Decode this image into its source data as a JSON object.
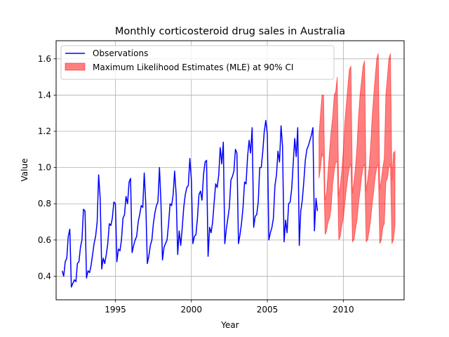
{
  "chart_data": {
    "type": "line",
    "title": "Monthly corticosteroid drug sales in Australia",
    "xlabel": "Year",
    "ylabel": "Value",
    "xlim": [
      1991.1,
      2014.0
    ],
    "ylim": [
      0.27,
      1.7
    ],
    "grid": true,
    "legend_position": "top-left",
    "x_ticks": [
      1995,
      2000,
      2005,
      2010
    ],
    "y_ticks": [
      0.4,
      0.6,
      0.8,
      1.0,
      1.2,
      1.4,
      1.6
    ],
    "x_tick_labels": [
      "1995",
      "2000",
      "2005",
      "2010"
    ],
    "y_tick_labels": [
      "0.4",
      "0.6",
      "0.8",
      "1.0",
      "1.2",
      "1.4",
      "1.6"
    ],
    "colors": {
      "observations": "#0000ff",
      "mle_band": "#ff0000",
      "grid": "#b0b0b0"
    },
    "series": [
      {
        "name": "Observations",
        "kind": "line",
        "points": [
          [
            1991.5,
            0.43
          ],
          [
            1991.6,
            0.4
          ],
          [
            1991.7,
            0.48
          ],
          [
            1991.8,
            0.5
          ],
          [
            1991.9,
            0.62
          ],
          [
            1992.0,
            0.66
          ],
          [
            1992.1,
            0.34
          ],
          [
            1992.2,
            0.36
          ],
          [
            1992.3,
            0.38
          ],
          [
            1992.4,
            0.37
          ],
          [
            1992.5,
            0.47
          ],
          [
            1992.6,
            0.48
          ],
          [
            1992.7,
            0.56
          ],
          [
            1992.8,
            0.6
          ],
          [
            1992.9,
            0.77
          ],
          [
            1993.0,
            0.76
          ],
          [
            1993.1,
            0.39
          ],
          [
            1993.2,
            0.43
          ],
          [
            1993.3,
            0.42
          ],
          [
            1993.4,
            0.46
          ],
          [
            1993.5,
            0.52
          ],
          [
            1993.6,
            0.58
          ],
          [
            1993.7,
            0.62
          ],
          [
            1993.8,
            0.7
          ],
          [
            1993.9,
            0.96
          ],
          [
            1994.0,
            0.83
          ],
          [
            1994.1,
            0.44
          ],
          [
            1994.2,
            0.5
          ],
          [
            1994.3,
            0.47
          ],
          [
            1994.4,
            0.52
          ],
          [
            1994.5,
            0.58
          ],
          [
            1994.6,
            0.69
          ],
          [
            1994.7,
            0.68
          ],
          [
            1994.8,
            0.72
          ],
          [
            1994.9,
            0.81
          ],
          [
            1995.0,
            0.8
          ],
          [
            1995.1,
            0.48
          ],
          [
            1995.2,
            0.55
          ],
          [
            1995.3,
            0.54
          ],
          [
            1995.4,
            0.6
          ],
          [
            1995.5,
            0.72
          ],
          [
            1995.6,
            0.74
          ],
          [
            1995.7,
            0.84
          ],
          [
            1995.8,
            0.8
          ],
          [
            1995.9,
            0.92
          ],
          [
            1996.0,
            0.94
          ],
          [
            1996.1,
            0.53
          ],
          [
            1996.2,
            0.57
          ],
          [
            1996.3,
            0.6
          ],
          [
            1996.4,
            0.62
          ],
          [
            1996.5,
            0.7
          ],
          [
            1996.6,
            0.74
          ],
          [
            1996.7,
            0.79
          ],
          [
            1996.8,
            0.78
          ],
          [
            1996.9,
            0.97
          ],
          [
            1997.0,
            0.8
          ],
          [
            1997.1,
            0.47
          ],
          [
            1997.2,
            0.51
          ],
          [
            1997.3,
            0.57
          ],
          [
            1997.4,
            0.6
          ],
          [
            1997.5,
            0.69
          ],
          [
            1997.6,
            0.75
          ],
          [
            1997.7,
            0.79
          ],
          [
            1997.8,
            0.81
          ],
          [
            1997.9,
            1.0
          ],
          [
            1998.0,
            0.81
          ],
          [
            1998.1,
            0.49
          ],
          [
            1998.2,
            0.56
          ],
          [
            1998.3,
            0.58
          ],
          [
            1998.4,
            0.6
          ],
          [
            1998.5,
            0.69
          ],
          [
            1998.6,
            0.8
          ],
          [
            1998.7,
            0.79
          ],
          [
            1998.8,
            0.85
          ],
          [
            1998.9,
            0.98
          ],
          [
            1999.0,
            0.85
          ],
          [
            1999.1,
            0.52
          ],
          [
            1999.2,
            0.65
          ],
          [
            1999.3,
            0.57
          ],
          [
            1999.4,
            0.67
          ],
          [
            1999.5,
            0.78
          ],
          [
            1999.6,
            0.85
          ],
          [
            1999.7,
            0.89
          ],
          [
            1999.8,
            0.9
          ],
          [
            1999.9,
            1.05
          ],
          [
            2000.0,
            0.93
          ],
          [
            2000.1,
            0.58
          ],
          [
            2000.2,
            0.62
          ],
          [
            2000.3,
            0.63
          ],
          [
            2000.4,
            0.72
          ],
          [
            2000.5,
            0.85
          ],
          [
            2000.6,
            0.87
          ],
          [
            2000.7,
            0.82
          ],
          [
            2000.8,
            0.96
          ],
          [
            2000.9,
            1.03
          ],
          [
            2001.0,
            1.04
          ],
          [
            2001.1,
            0.51
          ],
          [
            2001.2,
            0.67
          ],
          [
            2001.3,
            0.64
          ],
          [
            2001.4,
            0.7
          ],
          [
            2001.5,
            0.81
          ],
          [
            2001.6,
            0.91
          ],
          [
            2001.7,
            0.89
          ],
          [
            2001.8,
            0.96
          ],
          [
            2001.9,
            1.11
          ],
          [
            2002.0,
            1.02
          ],
          [
            2002.1,
            1.14
          ],
          [
            2002.2,
            0.58
          ],
          [
            2002.3,
            0.66
          ],
          [
            2002.4,
            0.72
          ],
          [
            2002.5,
            0.78
          ],
          [
            2002.6,
            0.93
          ],
          [
            2002.7,
            0.95
          ],
          [
            2002.8,
            0.98
          ],
          [
            2002.9,
            1.1
          ],
          [
            2003.0,
            1.08
          ],
          [
            2003.1,
            0.58
          ],
          [
            2003.2,
            0.63
          ],
          [
            2003.3,
            0.69
          ],
          [
            2003.4,
            0.78
          ],
          [
            2003.5,
            0.92
          ],
          [
            2003.6,
            0.91
          ],
          [
            2003.7,
            1.06
          ],
          [
            2003.8,
            1.15
          ],
          [
            2003.9,
            1.08
          ],
          [
            2004.0,
            1.22
          ],
          [
            2004.1,
            0.67
          ],
          [
            2004.2,
            0.73
          ],
          [
            2004.3,
            0.74
          ],
          [
            2004.4,
            0.81
          ],
          [
            2004.5,
            1.0
          ],
          [
            2004.6,
            1.0
          ],
          [
            2004.7,
            1.09
          ],
          [
            2004.8,
            1.2
          ],
          [
            2004.9,
            1.26
          ],
          [
            2005.0,
            1.18
          ],
          [
            2005.1,
            0.6
          ],
          [
            2005.2,
            0.64
          ],
          [
            2005.3,
            0.67
          ],
          [
            2005.4,
            0.72
          ],
          [
            2005.5,
            0.9
          ],
          [
            2005.6,
            0.96
          ],
          [
            2005.7,
            1.09
          ],
          [
            2005.8,
            1.03
          ],
          [
            2005.9,
            1.23
          ],
          [
            2006.0,
            1.12
          ],
          [
            2006.1,
            0.59
          ],
          [
            2006.2,
            0.71
          ],
          [
            2006.3,
            0.64
          ],
          [
            2006.4,
            0.8
          ],
          [
            2006.5,
            0.81
          ],
          [
            2006.6,
            0.88
          ],
          [
            2006.7,
            1.02
          ],
          [
            2006.8,
            1.16
          ],
          [
            2006.9,
            1.06
          ],
          [
            2007.0,
            1.22
          ],
          [
            2007.1,
            0.57
          ],
          [
            2007.2,
            0.76
          ],
          [
            2007.3,
            0.82
          ],
          [
            2007.4,
            0.92
          ],
          [
            2007.5,
            1.04
          ],
          [
            2007.6,
            1.1
          ],
          [
            2007.7,
            1.12
          ],
          [
            2007.8,
            1.15
          ],
          [
            2007.9,
            1.18
          ],
          [
            2008.0,
            1.22
          ],
          [
            2008.1,
            0.65
          ],
          [
            2008.2,
            0.83
          ],
          [
            2008.3,
            0.76
          ]
        ]
      },
      {
        "name": "Maximum Likelihood Estimates (MLE) at 90% CI",
        "kind": "band",
        "x": [
          2008.4,
          2008.5,
          2008.6,
          2008.7,
          2008.8,
          2008.9,
          2009.0,
          2009.1,
          2009.2,
          2009.3,
          2009.4,
          2009.5,
          2009.6,
          2009.7,
          2009.8,
          2009.9,
          2010.0,
          2010.1,
          2010.2,
          2010.3,
          2010.4,
          2010.5,
          2010.6,
          2010.7,
          2010.8,
          2010.9,
          2011.0,
          2011.1,
          2011.2,
          2011.3,
          2011.4,
          2011.5,
          2011.6,
          2011.7,
          2011.8,
          2011.9,
          2012.0,
          2012.1,
          2012.2,
          2012.3,
          2012.4,
          2012.5,
          2012.6,
          2012.7,
          2012.8,
          2012.9,
          2013.0,
          2013.1,
          2013.2,
          2013.3,
          2013.4
        ],
        "lower": [
          0.94,
          1.0,
          1.08,
          1.05,
          0.63,
          0.65,
          0.7,
          0.72,
          0.78,
          0.91,
          0.98,
          1.03,
          1.03,
          0.6,
          0.62,
          0.68,
          0.72,
          0.8,
          0.88,
          0.95,
          1.0,
          1.02,
          0.59,
          0.6,
          0.66,
          0.71,
          0.8,
          0.87,
          0.95,
          1.0,
          1.02,
          0.59,
          0.6,
          0.65,
          0.71,
          0.8,
          0.87,
          0.95,
          1.0,
          1.02,
          0.58,
          0.6,
          0.67,
          0.69,
          0.92,
          0.94,
          1.0,
          1.02,
          0.58,
          0.6,
          0.68
        ],
        "upper": [
          1.18,
          1.3,
          1.4,
          1.4,
          0.82,
          0.86,
          0.98,
          1.1,
          1.2,
          1.28,
          1.4,
          1.42,
          1.5,
          0.84,
          0.9,
          0.98,
          1.1,
          1.25,
          1.35,
          1.45,
          1.54,
          1.56,
          0.86,
          0.92,
          1.0,
          1.12,
          1.28,
          1.4,
          1.48,
          1.56,
          1.59,
          0.87,
          0.93,
          1.0,
          1.12,
          1.28,
          1.4,
          1.5,
          1.6,
          1.63,
          0.88,
          0.93,
          1.0,
          1.05,
          1.4,
          1.5,
          1.6,
          1.63,
          0.93,
          1.08,
          1.09
        ]
      }
    ]
  }
}
